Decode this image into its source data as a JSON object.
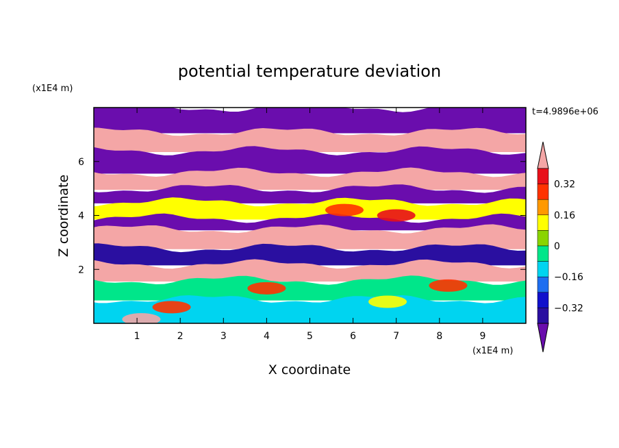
{
  "chart_data": {
    "type": "heatmap",
    "title": "potential temperature deviation",
    "time_label": "t=4.9896e+06",
    "xlabel": "X coordinate",
    "ylabel": "Z coordinate",
    "x_unit": "(x1E4 m)",
    "y_unit": "(x1E4 m)",
    "xlim": [
      0,
      10
    ],
    "ylim": [
      0,
      8
    ],
    "x_ticks": [
      "1",
      "2",
      "3",
      "4",
      "5",
      "6",
      "7",
      "8",
      "9"
    ],
    "y_ticks": [
      "2",
      "4",
      "6"
    ],
    "colorbar": {
      "levels": [
        -0.4,
        -0.32,
        -0.24,
        -0.16,
        -0.08,
        0,
        0.08,
        0.16,
        0.24,
        0.32,
        0.4
      ],
      "colors": [
        "#6a0dad",
        "#2a0fa0",
        "#1010cc",
        "#1e6ef0",
        "#00d4f0",
        "#00e68a",
        "#8ad400",
        "#ffff00",
        "#ff9900",
        "#ff3300",
        "#e8101a",
        "#f4a6a6"
      ],
      "tick_labels": [
        "0.32",
        "0.16",
        "0",
        "−0.16",
        "−0.32"
      ],
      "extend": "both"
    },
    "bands": [
      {
        "z": [
          7.1,
          8.0
        ],
        "value": -0.5
      },
      {
        "z": [
          6.4,
          7.1
        ],
        "value": 0.5
      },
      {
        "z": [
          5.6,
          6.4
        ],
        "value": -0.5
      },
      {
        "z": [
          5.0,
          5.6
        ],
        "value": 0.5
      },
      {
        "z": [
          4.5,
          5.0
        ],
        "value": -0.5
      },
      {
        "z": [
          3.9,
          4.5
        ],
        "value": 0.1
      },
      {
        "z": [
          3.5,
          3.9
        ],
        "value": -0.5
      },
      {
        "z": [
          2.8,
          3.5
        ],
        "value": 0.5
      },
      {
        "z": [
          2.2,
          2.8
        ],
        "value": -0.35
      },
      {
        "z": [
          1.6,
          2.2
        ],
        "value": 0.5
      },
      {
        "z": [
          0.9,
          1.6
        ],
        "value": -0.05
      },
      {
        "z": [
          0.0,
          0.9
        ],
        "value": -0.1
      }
    ],
    "features": [
      {
        "x": 7.0,
        "z": 4.0,
        "value": 0.35
      },
      {
        "x": 5.8,
        "z": 4.2,
        "value": 0.25
      },
      {
        "x": 1.8,
        "z": 0.6,
        "value": 0.25
      },
      {
        "x": 1.1,
        "z": 0.15,
        "value": 0.45
      },
      {
        "x": 4.0,
        "z": 1.3,
        "value": 0.3
      },
      {
        "x": 6.8,
        "z": 0.8,
        "value": 0.12
      },
      {
        "x": 8.2,
        "z": 1.4,
        "value": 0.3
      }
    ]
  }
}
